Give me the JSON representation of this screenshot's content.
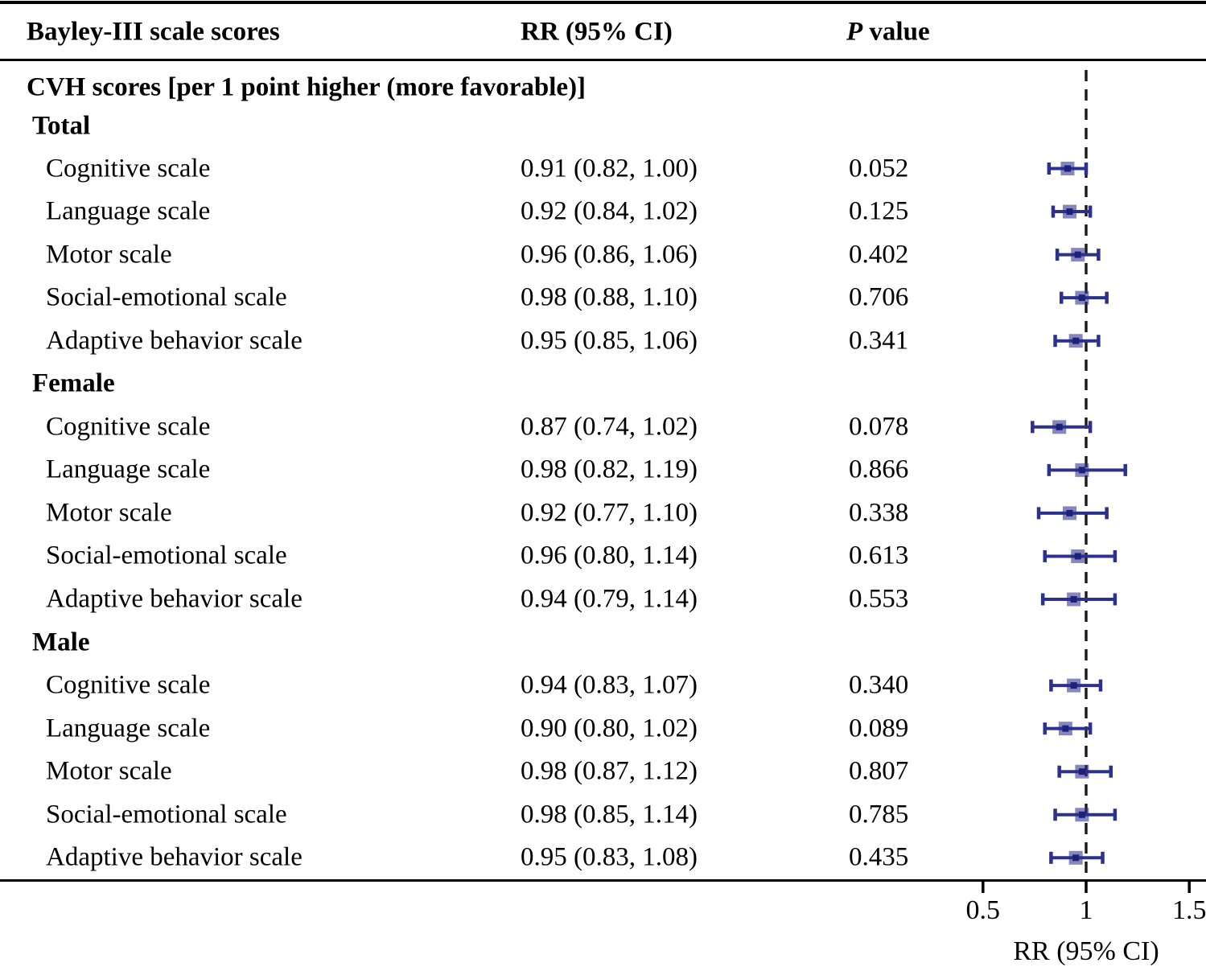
{
  "header": {
    "col_scores": "Bayley-III scale scores",
    "col_rr": "RR (95% CI)",
    "col_p_italic": "P",
    "col_p_rest": " value"
  },
  "axis": {
    "tick_labels": [
      "0.5",
      "1",
      "1.5"
    ],
    "tick_values": [
      0.5,
      1,
      1.5
    ],
    "title": "RR (95% CI)",
    "refline": 1
  },
  "colors": {
    "marker_line": "#2c318e",
    "marker_fill": "rgba(44,49,142,0.58)",
    "marker_core": "#1e2178",
    "refline": "#1a1a1a",
    "axis": "#000000"
  },
  "rows": [
    {
      "type": "section",
      "label": "CVH scores [per 1 point higher (more favorable)]"
    },
    {
      "type": "group",
      "label": "Total"
    },
    {
      "type": "item",
      "label": "Cognitive scale",
      "rr_text": "0.91 (0.82, 1.00)",
      "p_text": "0.052",
      "rr": 0.91,
      "lo": 0.82,
      "hi": 1.0
    },
    {
      "type": "item",
      "label": "Language scale",
      "rr_text": "0.92 (0.84, 1.02)",
      "p_text": "0.125",
      "rr": 0.92,
      "lo": 0.84,
      "hi": 1.02
    },
    {
      "type": "item",
      "label": "Motor scale",
      "rr_text": "0.96 (0.86, 1.06)",
      "p_text": "0.402",
      "rr": 0.96,
      "lo": 0.86,
      "hi": 1.06
    },
    {
      "type": "item",
      "label": "Social-emotional scale",
      "rr_text": "0.98 (0.88, 1.10)",
      "p_text": "0.706",
      "rr": 0.98,
      "lo": 0.88,
      "hi": 1.1
    },
    {
      "type": "item",
      "label": "Adaptive behavior scale",
      "rr_text": "0.95 (0.85, 1.06)",
      "p_text": "0.341",
      "rr": 0.95,
      "lo": 0.85,
      "hi": 1.06
    },
    {
      "type": "group",
      "label": "Female"
    },
    {
      "type": "item",
      "label": "Cognitive scale",
      "rr_text": "0.87 (0.74, 1.02)",
      "p_text": "0.078",
      "rr": 0.87,
      "lo": 0.74,
      "hi": 1.02
    },
    {
      "type": "item",
      "label": "Language scale",
      "rr_text": "0.98 (0.82, 1.19)",
      "p_text": "0.866",
      "rr": 0.98,
      "lo": 0.82,
      "hi": 1.19
    },
    {
      "type": "item",
      "label": "Motor scale",
      "rr_text": "0.92 (0.77, 1.10)",
      "p_text": "0.338",
      "rr": 0.92,
      "lo": 0.77,
      "hi": 1.1
    },
    {
      "type": "item",
      "label": "Social-emotional scale",
      "rr_text": "0.96 (0.80, 1.14)",
      "p_text": "0.613",
      "rr": 0.96,
      "lo": 0.8,
      "hi": 1.14
    },
    {
      "type": "item",
      "label": "Adaptive behavior scale",
      "rr_text": "0.94 (0.79, 1.14)",
      "p_text": "0.553",
      "rr": 0.94,
      "lo": 0.79,
      "hi": 1.14
    },
    {
      "type": "group",
      "label": "Male"
    },
    {
      "type": "item",
      "label": "Cognitive scale",
      "rr_text": "0.94 (0.83, 1.07)",
      "p_text": "0.340",
      "rr": 0.94,
      "lo": 0.83,
      "hi": 1.07
    },
    {
      "type": "item",
      "label": "Language scale",
      "rr_text": "0.90 (0.80, 1.02)",
      "p_text": "0.089",
      "rr": 0.9,
      "lo": 0.8,
      "hi": 1.02
    },
    {
      "type": "item",
      "label": "Motor scale",
      "rr_text": "0.98 (0.87, 1.12)",
      "p_text": "0.807",
      "rr": 0.98,
      "lo": 0.87,
      "hi": 1.12
    },
    {
      "type": "item",
      "label": "Social-emotional scale",
      "rr_text": "0.98 (0.85, 1.14)",
      "p_text": "0.785",
      "rr": 0.98,
      "lo": 0.85,
      "hi": 1.14
    },
    {
      "type": "item",
      "label": "Adaptive behavior scale",
      "rr_text": "0.95 (0.83, 1.08)",
      "p_text": "0.435",
      "rr": 0.95,
      "lo": 0.83,
      "hi": 1.08
    }
  ],
  "chart_data": {
    "type": "scatter",
    "subtype": "forest-plot",
    "title": "CVH scores [per 1 point higher (more favorable)]",
    "xlabel": "RR (95% CI)",
    "xlim": [
      0.35,
      1.55
    ],
    "xticks": [
      0.5,
      1,
      1.5
    ],
    "refline_x": 1,
    "grid": false,
    "legend": "none",
    "groups": [
      {
        "name": "Total",
        "points": [
          {
            "label": "Cognitive scale",
            "rr": 0.91,
            "ci": [
              0.82,
              1.0
            ],
            "p": 0.052
          },
          {
            "label": "Language scale",
            "rr": 0.92,
            "ci": [
              0.84,
              1.02
            ],
            "p": 0.125
          },
          {
            "label": "Motor scale",
            "rr": 0.96,
            "ci": [
              0.86,
              1.06
            ],
            "p": 0.402
          },
          {
            "label": "Social-emotional scale",
            "rr": 0.98,
            "ci": [
              0.88,
              1.1
            ],
            "p": 0.706
          },
          {
            "label": "Adaptive behavior scale",
            "rr": 0.95,
            "ci": [
              0.85,
              1.06
            ],
            "p": 0.341
          }
        ]
      },
      {
        "name": "Female",
        "points": [
          {
            "label": "Cognitive scale",
            "rr": 0.87,
            "ci": [
              0.74,
              1.02
            ],
            "p": 0.078
          },
          {
            "label": "Language scale",
            "rr": 0.98,
            "ci": [
              0.82,
              1.19
            ],
            "p": 0.866
          },
          {
            "label": "Motor scale",
            "rr": 0.92,
            "ci": [
              0.77,
              1.1
            ],
            "p": 0.338
          },
          {
            "label": "Social-emotional scale",
            "rr": 0.96,
            "ci": [
              0.8,
              1.14
            ],
            "p": 0.613
          },
          {
            "label": "Adaptive behavior scale",
            "rr": 0.94,
            "ci": [
              0.79,
              1.14
            ],
            "p": 0.553
          }
        ]
      },
      {
        "name": "Male",
        "points": [
          {
            "label": "Cognitive scale",
            "rr": 0.94,
            "ci": [
              0.83,
              1.07
            ],
            "p": 0.34
          },
          {
            "label": "Language scale",
            "rr": 0.9,
            "ci": [
              0.8,
              1.02
            ],
            "p": 0.089
          },
          {
            "label": "Motor scale",
            "rr": 0.98,
            "ci": [
              0.87,
              1.12
            ],
            "p": 0.807
          },
          {
            "label": "Social-emotional scale",
            "rr": 0.98,
            "ci": [
              0.85,
              1.14
            ],
            "p": 0.785
          },
          {
            "label": "Adaptive behavior scale",
            "rr": 0.95,
            "ci": [
              0.83,
              1.08
            ],
            "p": 0.435
          }
        ]
      }
    ]
  }
}
